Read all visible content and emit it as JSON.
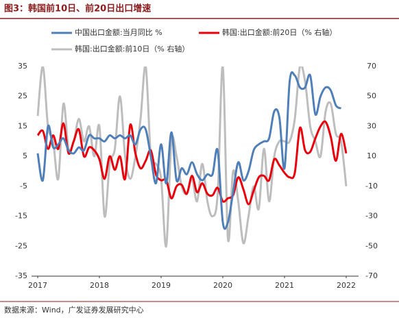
{
  "chart_data": {
    "type": "line",
    "title": "图3：韩国前10日、前20日出口增速",
    "source": "数据来源：Wind，广发证券发展研究中心",
    "x": [
      2017,
      2017.0833,
      2017.1667,
      2017.25,
      2017.3333,
      2017.4167,
      2017.5,
      2017.5833,
      2017.6667,
      2017.75,
      2017.8333,
      2017.9167,
      2018,
      2018.0833,
      2018.1667,
      2018.25,
      2018.3333,
      2018.4167,
      2018.5,
      2018.5833,
      2018.6667,
      2018.75,
      2018.8333,
      2018.9167,
      2019,
      2019.0833,
      2019.1667,
      2019.25,
      2019.3333,
      2019.4167,
      2019.5,
      2019.5833,
      2019.6667,
      2019.75,
      2019.8333,
      2019.9167,
      2020,
      2020.0833,
      2020.1667,
      2020.25,
      2020.3333,
      2020.4167,
      2020.5,
      2020.5833,
      2020.6667,
      2020.75,
      2020.8333,
      2020.9167,
      2021,
      2021.0833,
      2021.1667,
      2021.25,
      2021.3333,
      2021.4167,
      2021.5,
      2021.5833,
      2021.6667,
      2021.75,
      2021.8333,
      2021.9167,
      2022
    ],
    "xlim": [
      2016.9,
      2022.2
    ],
    "xticks": [
      2017,
      2018,
      2019,
      2020,
      2021,
      2022
    ],
    "ylim": [
      -35,
      35
    ],
    "yticks": [
      -35,
      -25,
      -15,
      -5,
      5,
      15,
      25,
      35
    ],
    "y2lim": [
      -70,
      70
    ],
    "y2ticks": [
      -70,
      -50,
      -30,
      -10,
      10,
      30,
      50,
      70
    ],
    "series": [
      {
        "name": "中国出口金额:当月同比 %",
        "color": "#4f7fb8",
        "axis": "y",
        "values": [
          6,
          -3,
          15,
          8,
          9,
          11,
          7,
          6,
          8,
          7,
          12,
          11,
          11,
          10,
          12,
          11,
          12,
          11,
          12,
          9,
          14,
          14,
          5,
          -4,
          9,
          -4,
          13,
          -3,
          1,
          -1,
          3,
          -1,
          -3,
          -1,
          -1,
          7,
          -17,
          -17,
          -7,
          3,
          -3,
          0,
          7,
          9,
          10,
          11,
          20,
          18,
          1,
          30,
          32,
          28,
          28,
          32,
          19,
          25,
          28,
          27,
          22,
          21,
          null
        ]
      },
      {
        "name": "韩国:出口金额:前20日（% 右轴）",
        "color": "#e8000b",
        "axis": "y2",
        "values": [
          24,
          27,
          15,
          24,
          15,
          32,
          12,
          20,
          28,
          10,
          16,
          14,
          8,
          -5,
          10,
          1,
          10,
          -5,
          31,
          12,
          2,
          7,
          14,
          -2,
          -6,
          -6,
          -18,
          -10,
          -9,
          -15,
          -3,
          -14,
          -8,
          -15,
          -16,
          -11,
          -20,
          -18,
          -16,
          -4,
          -12,
          -22,
          -13,
          -4,
          -3,
          -6,
          8,
          4,
          -1,
          -4,
          -1,
          29,
          14,
          13,
          22,
          30,
          33,
          23,
          7,
          25,
          12
        ]
      },
      {
        "name": "韩国:出口金额:前10日（% 右轴）",
        "color": "#bdbdbd",
        "axis": "y2",
        "values": [
          37,
          70,
          30,
          20,
          -5,
          45,
          15,
          20,
          35,
          20,
          30,
          10,
          30,
          -30,
          5,
          15,
          50,
          10,
          -5,
          10,
          35,
          70,
          10,
          5,
          -5,
          -50,
          20,
          10,
          -10,
          -15,
          -5,
          -20,
          5,
          -20,
          -30,
          -15,
          70,
          -45,
          0,
          -20,
          -48,
          -30,
          -10,
          -25,
          15,
          -20,
          10,
          20,
          20,
          20,
          35,
          70,
          60,
          30,
          20,
          10,
          40,
          45,
          25,
          20,
          -10
        ]
      }
    ]
  }
}
